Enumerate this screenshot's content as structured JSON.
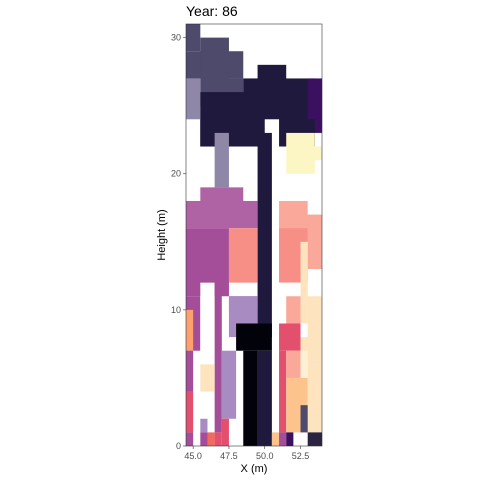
{
  "chart_data": {
    "type": "heatmap",
    "title": "Year: 86",
    "xlabel": "X (m)",
    "ylabel": "Height (m)",
    "xlim": [
      44.5,
      54.0
    ],
    "ylim": [
      0,
      31
    ],
    "xticks": [
      45.0,
      47.5,
      50.0,
      52.5
    ],
    "xtick_labels": [
      "45.0",
      "47.5",
      "50.0",
      "52.5"
    ],
    "yticks": [
      0,
      10,
      20,
      30
    ],
    "ytick_labels": [
      "0",
      "10",
      "20",
      "30"
    ],
    "grid": false,
    "legend": "none",
    "cell_size": {
      "x": 1,
      "y": 1
    },
    "x_start": 44.5,
    "cells": [
      {
        "x0": 44.5,
        "x1": 45.5,
        "y0": 29,
        "y1": 31,
        "color": "#4d4a6b"
      },
      {
        "x0": 45.5,
        "x1": 47.5,
        "y0": 28,
        "y1": 30,
        "color": "#4d4a6b"
      },
      {
        "x0": 44.5,
        "x1": 47.5,
        "y0": 27,
        "y1": 29,
        "color": "#4d4a6b"
      },
      {
        "x0": 45.5,
        "x1": 48.5,
        "y0": 27,
        "y1": 29,
        "color": "#4d4a6b"
      },
      {
        "x0": 45.5,
        "x1": 48.5,
        "y0": 25,
        "y1": 27,
        "color": "#4d4a6b"
      },
      {
        "x0": 48.5,
        "x1": 49.5,
        "y0": 26,
        "y1": 27,
        "color": "#8f87a8"
      },
      {
        "x0": 49.5,
        "x1": 51.5,
        "y0": 26,
        "y1": 28,
        "color": "#1f1a3d"
      },
      {
        "x0": 44.5,
        "x1": 45.5,
        "y0": 24,
        "y1": 27,
        "color": "#8f87a8"
      },
      {
        "x0": 45.5,
        "x1": 53.5,
        "y0": 22,
        "y1": 26,
        "color": "#1f1a3d"
      },
      {
        "x0": 48.5,
        "x1": 53.5,
        "y0": 25,
        "y1": 27,
        "color": "#1f1a3d"
      },
      {
        "x0": 53.0,
        "x1": 54.0,
        "y0": 23,
        "y1": 27,
        "color": "#3b1060"
      },
      {
        "x0": 45.5,
        "x1": 46.5,
        "y0": 22,
        "y1": 24,
        "color": "#1f1a3d"
      },
      {
        "x0": 51.5,
        "x1": 53.5,
        "y0": 22,
        "y1": 24,
        "color": "#1f1a3d"
      },
      {
        "x0": 50.0,
        "x1": 51.0,
        "y0": 22,
        "y1": 24,
        "color": "#ffffff"
      },
      {
        "x0": 46.5,
        "x1": 47.5,
        "y0": 19,
        "y1": 23,
        "color": "#8f87a8"
      },
      {
        "x0": 49.5,
        "x1": 50.5,
        "y0": 8,
        "y1": 23,
        "color": "#1f1a3d"
      },
      {
        "x0": 51.5,
        "x1": 53.5,
        "y0": 20,
        "y1": 23,
        "color": "#fbf6c4"
      },
      {
        "x0": 53.0,
        "x1": 54.0,
        "y0": 21,
        "y1": 22,
        "color": "#fbf6c4"
      },
      {
        "x0": 45.5,
        "x1": 48.5,
        "y0": 17,
        "y1": 19,
        "color": "#b063a4"
      },
      {
        "x0": 44.5,
        "x1": 49.5,
        "y0": 16,
        "y1": 18,
        "color": "#b063a4"
      },
      {
        "x0": 51.0,
        "x1": 53.0,
        "y0": 16,
        "y1": 18,
        "color": "#f9a89a"
      },
      {
        "x0": 51.0,
        "x1": 54.0,
        "y0": 15,
        "y1": 17,
        "color": "#f9a89a"
      },
      {
        "x0": 44.5,
        "x1": 47.5,
        "y0": 11,
        "y1": 16,
        "color": "#a44d98"
      },
      {
        "x0": 47.5,
        "x1": 49.5,
        "y0": 12,
        "y1": 16,
        "color": "#f78f87"
      },
      {
        "x0": 51.0,
        "x1": 53.0,
        "y0": 12,
        "y1": 16,
        "color": "#f78f87"
      },
      {
        "x0": 53.0,
        "x1": 54.0,
        "y0": 13,
        "y1": 16,
        "color": "#f9a89a"
      },
      {
        "x0": 52.5,
        "x1": 53.0,
        "y0": 9,
        "y1": 15,
        "color": "#fde3be"
      },
      {
        "x0": 47.5,
        "x1": 49.5,
        "y0": 10,
        "y1": 11,
        "color": "#a44d98"
      },
      {
        "x0": 47.5,
        "x1": 49.5,
        "y0": 8,
        "y1": 11,
        "color": "#a88bc1"
      },
      {
        "x0": 44.5,
        "x1": 45.5,
        "y0": 7,
        "y1": 11,
        "color": "#a44d98"
      },
      {
        "x0": 45.5,
        "x1": 46.5,
        "y0": 7,
        "y1": 12,
        "color": "#ffffff"
      },
      {
        "x0": 46.5,
        "x1": 47.0,
        "y0": 1,
        "y1": 12,
        "color": "#a44d98"
      },
      {
        "x0": 44.5,
        "x1": 45.0,
        "y0": 7,
        "y1": 10,
        "color": "#fca06e"
      },
      {
        "x0": 51.0,
        "x1": 52.5,
        "y0": 8,
        "y1": 12,
        "color": "#ffffff"
      },
      {
        "x0": 51.5,
        "x1": 52.5,
        "y0": 9,
        "y1": 11,
        "color": "#f9a89a"
      },
      {
        "x0": 53.0,
        "x1": 54.0,
        "y0": 8,
        "y1": 11,
        "color": "#fde3be"
      },
      {
        "x0": 48.0,
        "x1": 50.5,
        "y0": 7,
        "y1": 9,
        "color": "#02020a"
      },
      {
        "x0": 51.0,
        "x1": 52.5,
        "y0": 7,
        "y1": 9,
        "color": "#e2506e"
      },
      {
        "x0": 52.5,
        "x1": 54.0,
        "y0": 6,
        "y1": 8,
        "color": "#fde3be"
      },
      {
        "x0": 44.5,
        "x1": 45.0,
        "y0": 4,
        "y1": 7,
        "color": "#a44d98"
      },
      {
        "x0": 45.5,
        "x1": 46.5,
        "y0": 4,
        "y1": 6,
        "color": "#fde3be"
      },
      {
        "x0": 47.0,
        "x1": 48.0,
        "y0": 2,
        "y1": 7,
        "color": "#a88bc1"
      },
      {
        "x0": 48.5,
        "x1": 49.5,
        "y0": 0,
        "y1": 7,
        "color": "#02020a"
      },
      {
        "x0": 49.5,
        "x1": 50.5,
        "y0": 0,
        "y1": 7,
        "color": "#1f1a3d"
      },
      {
        "x0": 51.0,
        "x1": 51.5,
        "y0": 1,
        "y1": 7,
        "color": "#e2506e"
      },
      {
        "x0": 51.5,
        "x1": 52.5,
        "y0": 5,
        "y1": 7,
        "color": "#f9a89a"
      },
      {
        "x0": 52.5,
        "x1": 53.0,
        "y0": 5,
        "y1": 7,
        "color": "#fef0d4"
      },
      {
        "x0": 51.5,
        "x1": 53.0,
        "y0": 1,
        "y1": 5,
        "color": "#fcc38c"
      },
      {
        "x0": 53.0,
        "x1": 54.0,
        "y0": 1,
        "y1": 6,
        "color": "#fde3be"
      },
      {
        "x0": 52.5,
        "x1": 53.0,
        "y0": 1,
        "y1": 3,
        "color": "#4d4a6b"
      },
      {
        "x0": 44.5,
        "x1": 45.0,
        "y0": 1,
        "y1": 4,
        "color": "#e2506e"
      },
      {
        "x0": 47.0,
        "x1": 47.5,
        "y0": 0,
        "y1": 2,
        "color": "#e2506e"
      },
      {
        "x0": 44.5,
        "x1": 45.0,
        "y0": 0,
        "y1": 1,
        "color": "#a44d98"
      },
      {
        "x0": 45.5,
        "x1": 46.0,
        "y0": 0,
        "y1": 1,
        "color": "#a44d98"
      },
      {
        "x0": 46.0,
        "x1": 46.5,
        "y0": 0,
        "y1": 1,
        "color": "#f26a5c"
      },
      {
        "x0": 46.5,
        "x1": 47.0,
        "y0": 0,
        "y1": 1,
        "color": "#e2506e"
      },
      {
        "x0": 50.5,
        "x1": 51.0,
        "y0": 0,
        "y1": 1,
        "color": "#fcc38c"
      },
      {
        "x0": 51.0,
        "x1": 51.5,
        "y0": 0,
        "y1": 1,
        "color": "#a44d98"
      },
      {
        "x0": 51.5,
        "x1": 52.0,
        "y0": 0,
        "y1": 1,
        "color": "#3b1060"
      },
      {
        "x0": 53.0,
        "x1": 54.0,
        "y0": 0,
        "y1": 1,
        "color": "#2a2440"
      },
      {
        "x0": 45.5,
        "x1": 46.0,
        "y0": 1,
        "y1": 2,
        "color": "#a88bc1"
      }
    ]
  }
}
